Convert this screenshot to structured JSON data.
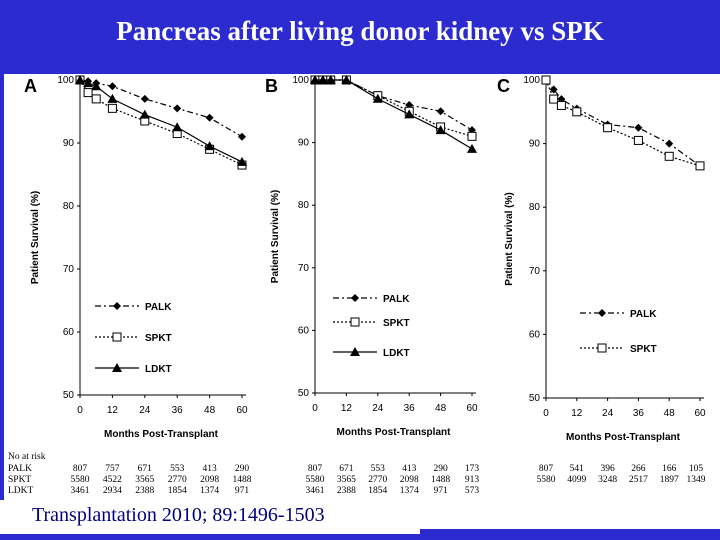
{
  "title": "Pancreas after living donor kidney vs SPK",
  "citation": "Transplantation 2010; 89:1496-1503",
  "at_risk_header": "No at risk",
  "chart_data": [
    {
      "type": "line",
      "panel": "A",
      "xlabel": "Months Post-Transplant",
      "ylabel": "Patient Survival (%)",
      "x_ticks": [
        0,
        12,
        24,
        36,
        48,
        60
      ],
      "y_ticks": [
        50,
        60,
        70,
        80,
        90,
        100
      ],
      "xlim": [
        0,
        60
      ],
      "ylim": [
        50,
        100
      ],
      "series": [
        {
          "name": "PALK",
          "marker": "diamond",
          "x": [
            0,
            3,
            6,
            12,
            24,
            36,
            48,
            60
          ],
          "y": [
            100,
            99.8,
            99.5,
            99.0,
            97.0,
            95.5,
            94.0,
            91.0
          ]
        },
        {
          "name": "SPKT",
          "marker": "square",
          "x": [
            0,
            3,
            6,
            12,
            24,
            36,
            48,
            60
          ],
          "y": [
            100,
            98.0,
            97.0,
            95.5,
            93.5,
            91.5,
            89.0,
            86.5
          ]
        },
        {
          "name": "LDKT",
          "marker": "triangle",
          "x": [
            0,
            3,
            6,
            12,
            24,
            36,
            48,
            60
          ],
          "y": [
            100,
            99.5,
            99.0,
            97.0,
            94.5,
            92.5,
            89.5,
            87.0
          ]
        }
      ],
      "at_risk": [
        {
          "label": "PALK",
          "values": [
            "807",
            "757",
            "671",
            "553",
            "413",
            "290"
          ]
        },
        {
          "label": "SPKT",
          "values": [
            "5580",
            "4522",
            "3565",
            "2770",
            "2098",
            "1488"
          ]
        },
        {
          "label": "LDKT",
          "values": [
            "3461",
            "2934",
            "2388",
            "1854",
            "1374",
            "971"
          ]
        }
      ]
    },
    {
      "type": "line",
      "panel": "B",
      "xlabel": "Months Post-Transplant",
      "ylabel": "Patient Survival (%)",
      "x_ticks": [
        0,
        12,
        24,
        36,
        48,
        60
      ],
      "y_ticks": [
        50,
        60,
        70,
        80,
        90,
        100
      ],
      "xlim": [
        0,
        60
      ],
      "ylim": [
        50,
        100
      ],
      "series": [
        {
          "name": "PALK",
          "marker": "diamond",
          "x": [
            0,
            3,
            6,
            12,
            24,
            36,
            48,
            60
          ],
          "y": [
            100,
            100,
            100,
            100,
            97.5,
            96.0,
            95.0,
            92.0
          ]
        },
        {
          "name": "SPKT",
          "marker": "square",
          "x": [
            0,
            3,
            6,
            12,
            24,
            36,
            48,
            60
          ],
          "y": [
            100,
            100,
            100,
            100,
            97.5,
            95.0,
            92.5,
            91.0
          ]
        },
        {
          "name": "LDKT",
          "marker": "triangle",
          "x": [
            0,
            3,
            6,
            12,
            24,
            36,
            48,
            60
          ],
          "y": [
            100,
            100,
            100,
            100,
            97.0,
            94.5,
            92.0,
            89.0
          ]
        }
      ],
      "at_risk": [
        {
          "label": "PALK",
          "values": [
            "807",
            "671",
            "553",
            "413",
            "290",
            "173"
          ]
        },
        {
          "label": "SPKT",
          "values": [
            "5580",
            "3565",
            "2770",
            "2098",
            "1488",
            "913"
          ]
        },
        {
          "label": "LDKT",
          "values": [
            "3461",
            "2388",
            "1854",
            "1374",
            "971",
            "573"
          ]
        }
      ]
    },
    {
      "type": "line",
      "panel": "C",
      "xlabel": "Months Post-Transplant",
      "ylabel": "Patient Survival (%)",
      "x_ticks": [
        0,
        12,
        24,
        36,
        48,
        60
      ],
      "y_ticks": [
        50,
        60,
        70,
        80,
        90,
        100
      ],
      "xlim": [
        0,
        60
      ],
      "ylim": [
        50,
        100
      ],
      "series": [
        {
          "name": "PALK",
          "marker": "diamond",
          "x": [
            0,
            3,
            6,
            12,
            24,
            36,
            48,
            60
          ],
          "y": [
            100,
            98.5,
            97.0,
            95.5,
            93.0,
            92.5,
            90.0,
            86.5
          ]
        },
        {
          "name": "SPKT",
          "marker": "square",
          "x": [
            0,
            3,
            6,
            12,
            24,
            36,
            48,
            60
          ],
          "y": [
            100,
            97.0,
            96.0,
            95.0,
            92.5,
            90.5,
            88.0,
            86.5
          ]
        }
      ],
      "at_risk": [
        {
          "label": "PALK",
          "values": [
            "807",
            "541",
            "396",
            "266",
            "166",
            "105"
          ]
        },
        {
          "label": "SPKT",
          "values": [
            "5580",
            "4099",
            "3248",
            "2517",
            "1897",
            "1349"
          ]
        }
      ]
    }
  ]
}
